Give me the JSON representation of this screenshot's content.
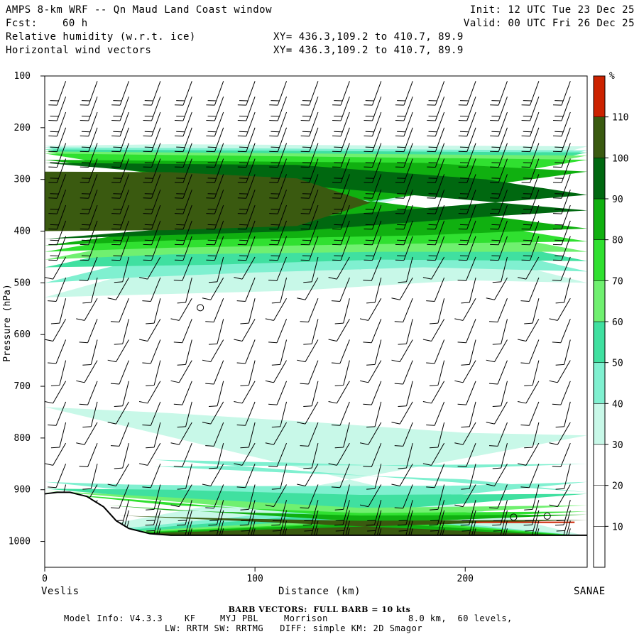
{
  "header": {
    "title": "AMPS 8-km WRF -- Qn Maud Land Coast window",
    "fcst_label": "Fcst:",
    "fcst_value": "60 h",
    "init": "Init: 12 UTC Tue 23 Dec 25",
    "valid": "Valid: 00 UTC Fri 26 Dec 25",
    "field1": "Relative humidity (w.r.t. ice)",
    "field2": "Horizontal wind vectors",
    "xy1": "XY= 436.3,109.2 to 410.7, 89.9",
    "xy2": "XY= 436.3,109.2 to 410.7, 89.9"
  },
  "axes": {
    "ylabel": "Pressure (hPa)",
    "xlabel": "Distance (km)",
    "left_station": "Veslis",
    "right_station": "SANAE"
  },
  "colorbar": {
    "unit": "%"
  },
  "footer": {
    "barb_title": "BARB VECTORS:  FULL BARB = 10 kts",
    "model_info_label": "Model Info: V4.3.3",
    "cu": "KF",
    "pbl": "MYJ PBL",
    "mp": "Morrison",
    "grid": "8.0 km,  60 levels,",
    "line3": "LW: RRTM SW: RRTMG   DIFF: simple KM: 2D Smagor"
  },
  "chart_data": {
    "type": "heatmap",
    "title": "Relative humidity (w.r.t. ice) and horizontal wind vectors cross-section",
    "xlabel": "Distance (km)",
    "ylabel": "Pressure (hPa)",
    "xlim": [
      0,
      258
    ],
    "ylim": [
      1050,
      100
    ],
    "x_ticks": [
      0,
      100,
      200
    ],
    "x_tick_labels": [
      "0",
      "100",
      "200"
    ],
    "y_ticks": [
      100,
      200,
      300,
      400,
      500,
      600,
      700,
      800,
      900,
      1000
    ],
    "y_tick_labels": [
      "100",
      "200",
      "300",
      "400",
      "500",
      "600",
      "700",
      "800",
      "900",
      "1000"
    ],
    "colorbar_levels": [
      10,
      20,
      30,
      40,
      50,
      60,
      70,
      80,
      90,
      100,
      110
    ],
    "colorbar_tick_labels": [
      "10",
      "20",
      "30",
      "40",
      "50",
      "60",
      "70",
      "80",
      "90",
      "100",
      "110"
    ],
    "colorbar_colors": [
      "#ffffff",
      "#ffffff",
      "#ffffff",
      "#c8f8e8",
      "#80f0d0",
      "#40e0a0",
      "#70f070",
      "#30e030",
      "#10b010",
      "#006810",
      "#3a5a10",
      "#cc2200"
    ],
    "terrain_surface": {
      "x": [
        0,
        6,
        12,
        20,
        28,
        34,
        40,
        50,
        60,
        80,
        100,
        150,
        200,
        258
      ],
      "pressure": [
        908,
        905,
        905,
        913,
        933,
        960,
        975,
        985,
        988,
        988,
        988,
        988,
        988,
        988
      ]
    },
    "moisture_layers": [
      {
        "name": "upper_cloud_layer",
        "pressure_range": [
          235,
          525
        ],
        "max_rh": 110
      },
      {
        "name": "mid_layer",
        "pressure_range": [
          760,
          890
        ],
        "max_rh": 50
      },
      {
        "name": "boundary_layer",
        "pressure_range": [
          890,
          990
        ],
        "max_rh": 110
      }
    ],
    "markers": {
      "calm_wind_circles": [
        {
          "x": 74,
          "pressure": 548
        },
        {
          "x": 223,
          "pressure": 953
        },
        {
          "x": 239,
          "pressure": 951
        }
      ]
    },
    "wind_barbs": {
      "columns_x": [
        10,
        25,
        40,
        55,
        70,
        85,
        100,
        115,
        130,
        145,
        160,
        175,
        190,
        205,
        220,
        235,
        250
      ],
      "upper_levels": {
        "pressure": [
          110,
          140,
          170,
          200,
          230,
          260,
          290,
          320,
          350,
          380,
          410
        ],
        "speed_kts": 20
      },
      "mid_levels": {
        "pressure": [
          450,
          490,
          530,
          570,
          610,
          650,
          690,
          730,
          770,
          810,
          850,
          890
        ],
        "speed_kts": 10
      },
      "low_levels": {
        "pressure": [
          920,
          940,
          960,
          975
        ],
        "speed_kts": 15
      }
    }
  }
}
